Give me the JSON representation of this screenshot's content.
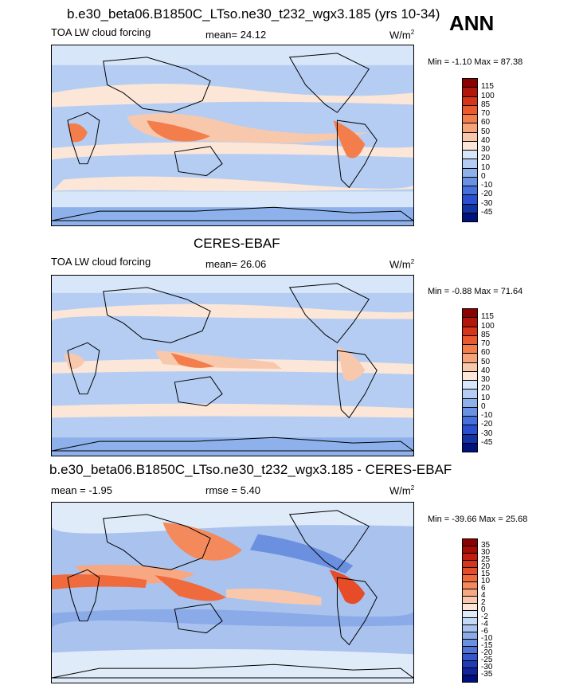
{
  "season": "ANN",
  "panels": [
    {
      "title": "b.e30_beta06.B1850C_LTso.ne30_t232_wgx3.185 (yrs 10-34)",
      "left": "TOA LW cloud forcing",
      "mid": "mean=  24.12",
      "units": "W/m",
      "units_sup": "2",
      "minmax": "Min =  -1.10 Max =  87.38",
      "levels": [
        "115",
        "100",
        "85",
        "70",
        "60",
        "50",
        "40",
        "30",
        "20",
        "10",
        "0",
        "-10",
        "-20",
        "-30",
        "-45"
      ],
      "colors": [
        "#8b0000",
        "#b2160b",
        "#d8341a",
        "#eb5a2e",
        "#f47d4c",
        "#f7a37a",
        "#f8c8ac",
        "#fbe6d8",
        "#d7e6f8",
        "#b5cdf2",
        "#8eb1ec",
        "#6a92e4",
        "#4671dc",
        "#2a4fd0",
        "#1232a8",
        "#00137a"
      ]
    },
    {
      "title": "CERES-EBAF",
      "left": "TOA LW cloud forcing",
      "mid": "mean=  26.06",
      "units": "W/m",
      "units_sup": "2",
      "minmax": "Min =  -0.88 Max =  71.64",
      "levels": [
        "115",
        "100",
        "85",
        "70",
        "60",
        "50",
        "40",
        "30",
        "20",
        "10",
        "0",
        "-10",
        "-20",
        "-30",
        "-45"
      ],
      "colors": [
        "#8b0000",
        "#b2160b",
        "#d8341a",
        "#eb5a2e",
        "#f47d4c",
        "#f7a37a",
        "#f8c8ac",
        "#fbe6d8",
        "#d7e6f8",
        "#b5cdf2",
        "#8eb1ec",
        "#6a92e4",
        "#4671dc",
        "#2a4fd0",
        "#1232a8",
        "#00137a"
      ]
    },
    {
      "title": "b.e30_beta06.B1850C_LTso.ne30_t232_wgx3.185 - CERES-EBAF",
      "left": "mean =  -1.95",
      "mid": "rmse =   5.40",
      "units": "W/m",
      "units_sup": "2",
      "minmax": "Min = -39.66 Max =  25.68",
      "levels": [
        "35",
        "30",
        "25",
        "20",
        "15",
        "10",
        "6",
        "4",
        "2",
        "0",
        "-2",
        "-4",
        "-6",
        "-10",
        "-15",
        "-20",
        "-25",
        "-30",
        "-35"
      ],
      "colors": [
        "#8b0000",
        "#a70d04",
        "#c21e0e",
        "#d8341a",
        "#e64c27",
        "#ef6a3c",
        "#f48a5c",
        "#f7a883",
        "#f9c7ab",
        "#fde6d6",
        "#e0ebf9",
        "#c5d8f4",
        "#a9c3ee",
        "#8aaae8",
        "#6b90e0",
        "#4e74d8",
        "#3457cc",
        "#1f3bb8",
        "#10259c",
        "#000f80"
      ]
    }
  ]
}
